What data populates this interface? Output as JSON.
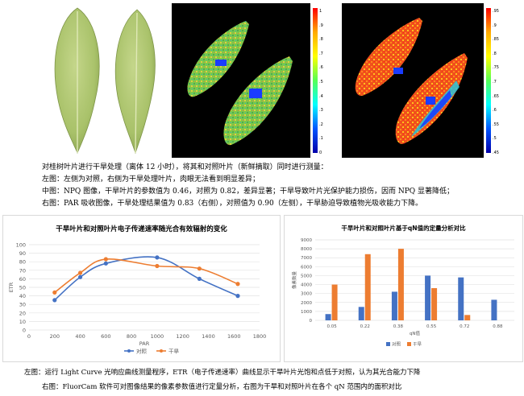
{
  "top_panels": {
    "colorbar_middle": {
      "ticks": [
        "1",
        ".9",
        ".8",
        ".7",
        ".6",
        ".5",
        ".4",
        ".3",
        ".2",
        ".1",
        "0"
      ]
    },
    "colorbar_right": {
      "ticks": [
        ".95",
        ".9",
        ".85",
        ".8",
        ".75",
        ".7",
        ".65",
        ".6",
        ".55",
        ".5",
        ".45"
      ]
    }
  },
  "caption": {
    "line1": "对桂树叶片进行干旱处理（离体 12 小时），将其和对照叶片（新鲜摘取）同时进行测量：",
    "line2": "左图：左侧为对照，右侧为干旱处理叶片，肉眼无法看到明显差异；",
    "line3": "中图：NPQ 图像，干旱叶片的参数值为 0.46，对照为 0.82，差异显著；干旱导致叶片光保护能力损伤，因而 NPQ 显著降低；",
    "line4": "右图：PAR 吸收图像，干旱处理结果值为 0.83（右侧），对照值为 0.90（左侧），干旱胁迫导致植物光吸收能力下降。"
  },
  "chart_data": [
    {
      "type": "line",
      "title": "干旱叶片和对照叶片电子传递速率随光合有效辐射的变化",
      "xlabel": "PAR",
      "ylabel": "ETR",
      "xlim": [
        0,
        1800
      ],
      "ylim": [
        0,
        100
      ],
      "xticks": [
        0,
        200,
        400,
        600,
        800,
        1000,
        1200,
        1400,
        1600,
        1800
      ],
      "yticks": [
        0,
        10,
        20,
        30,
        40,
        50,
        60,
        70,
        80,
        90,
        100
      ],
      "grid": true,
      "legend": "bottom",
      "series": [
        {
          "name": "对照",
          "color": "#4472C4",
          "x": [
            200,
            400,
            600,
            1000,
            1330,
            1630
          ],
          "y": [
            35,
            62,
            78,
            85,
            60,
            40
          ]
        },
        {
          "name": "干旱",
          "color": "#ED7D31",
          "x": [
            200,
            400,
            600,
            1000,
            1330,
            1630
          ],
          "y": [
            44,
            67,
            83,
            75,
            72,
            54
          ]
        }
      ]
    },
    {
      "type": "bar",
      "title": "干旱叶片和对照叶片基于qN值的定量分析对比",
      "xlabel": "qN值",
      "ylabel": "像素数量",
      "categories": [
        "0.05",
        "0.22",
        "0.38",
        "0.55",
        "0.72",
        "0.88"
      ],
      "ylim": [
        0,
        9000
      ],
      "yticks": [
        0,
        1000,
        2000,
        3000,
        4000,
        5000,
        6000,
        7000,
        8000,
        9000
      ],
      "grid": true,
      "legend": "bottom",
      "series": [
        {
          "name": "对照",
          "color": "#4472C4",
          "values": [
            700,
            1500,
            3200,
            5000,
            4800,
            2300
          ]
        },
        {
          "name": "干旱",
          "color": "#ED7D31",
          "values": [
            4000,
            7400,
            8000,
            3600,
            600,
            0
          ]
        }
      ]
    }
  ],
  "footer": {
    "line1": "左图：运行 Light Curve 光响应曲线测量程序，ETR（电子传递速率）曲线显示干旱叶片光饱和点低于对照，认为其光合能力下降",
    "line2": "右图：FluorCam 软件可对图像结果的像素参数值进行定量分析，右图为干旱和对照叶片在各个 qN 范围内的面积对比"
  }
}
